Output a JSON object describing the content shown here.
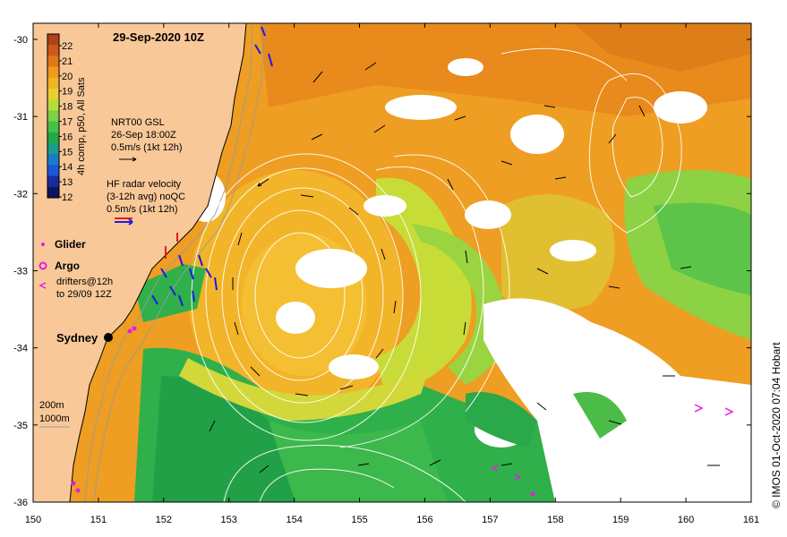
{
  "title": "29-Sep-2020 10Z",
  "credit": "© IMOS 01-Oct-2020 07:04 Hobart",
  "colorbar": {
    "label": "4h comp, p50, All Sats",
    "ticks": [
      "22",
      "21",
      "20",
      "19",
      "18",
      "17",
      "16",
      "15",
      "14",
      "13",
      "12"
    ],
    "colors": [
      "#b0421a",
      "#cc5a1a",
      "#e07818",
      "#ee9a1c",
      "#f0b428",
      "#e8d030",
      "#b8dc3c",
      "#7ed048",
      "#44c04a",
      "#22a84a",
      "#1a9c8c",
      "#1a7cc8",
      "#1a58d8",
      "#1a2c9c",
      "#0c1660"
    ]
  },
  "legend": {
    "gsl_title": "NRT00 GSL",
    "gsl_date": "26-Sep 18:00Z",
    "gsl_scale": "0.5m/s (1kt 12h)",
    "hf_title": "HF radar velocity",
    "hf_sub": "(3-12h avg) noQC",
    "hf_scale": "0.5m/s (1kt 12h)",
    "glider": "Glider",
    "argo": "Argo",
    "drifters_1": "drifters@12h",
    "drifters_2": "to 29/09 12Z"
  },
  "city": "Sydney",
  "depth": {
    "label_200": "200m",
    "label_1000": "1000m"
  },
  "axes": {
    "x_ticks": [
      "150",
      "151",
      "152",
      "153",
      "154",
      "155",
      "156",
      "157",
      "158",
      "159",
      "160",
      "161"
    ],
    "y_ticks": [
      "-30",
      "-31",
      "-32",
      "-33",
      "-34",
      "-35",
      "-36"
    ]
  },
  "colors": {
    "land": "#f9c898",
    "hf_arrow": "#1a1ae6",
    "hf_arrow_red": "#e61a1a",
    "marker": "#e61ae6"
  }
}
